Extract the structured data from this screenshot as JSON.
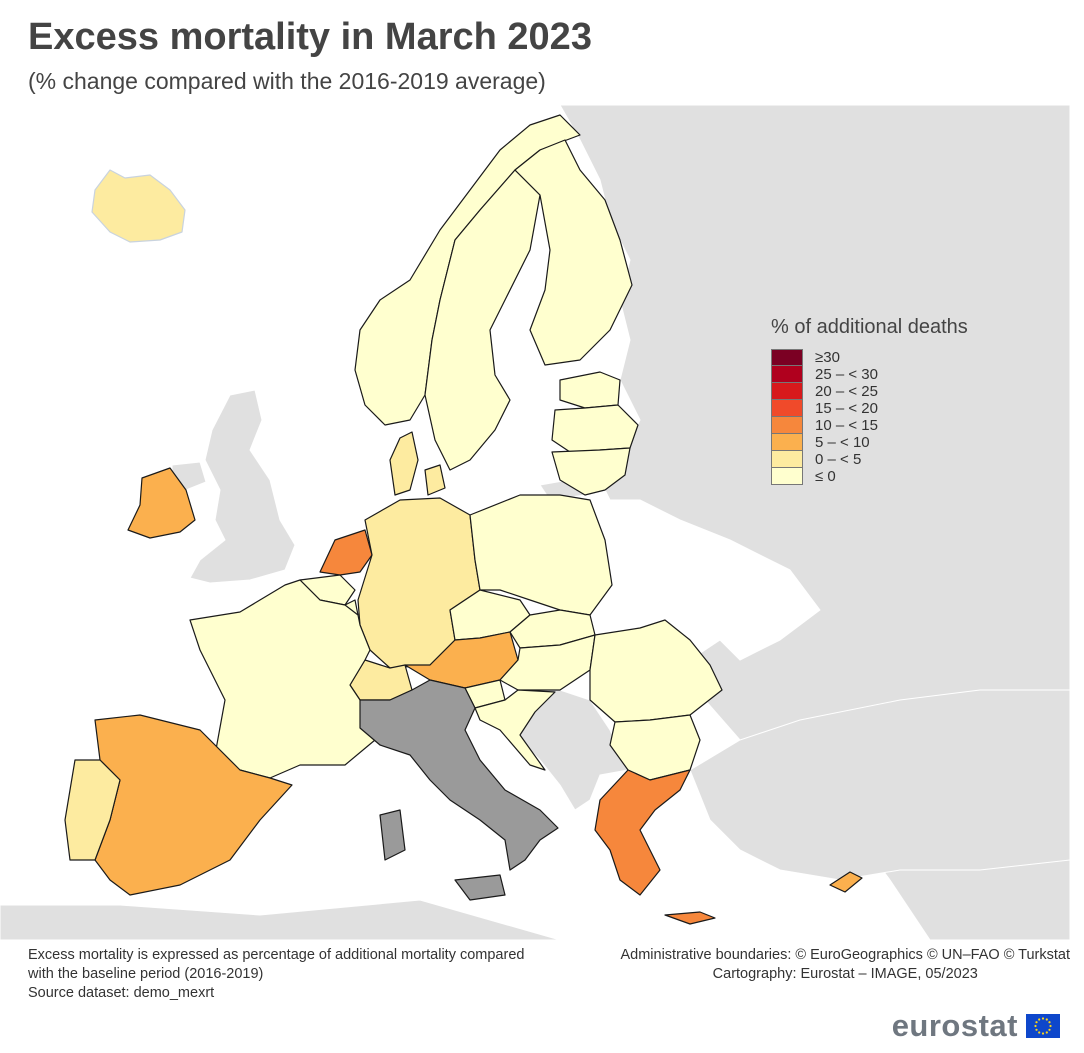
{
  "header": {
    "title": "Excess mortality in March 2023",
    "subtitle": "(% change compared with the 2016-2019 average)"
  },
  "legend": {
    "title": "% of additional deaths",
    "items": [
      {
        "label": "≥30",
        "color": "#7b0023"
      },
      {
        "label": "25 – < 30",
        "color": "#b0001e"
      },
      {
        "label": "20 – < 25",
        "color": "#d7191c"
      },
      {
        "label": "15 – < 20",
        "color": "#f04a2a"
      },
      {
        "label": "10 – < 15",
        "color": "#f6873c"
      },
      {
        "label": "5 – < 10",
        "color": "#fbb04e"
      },
      {
        "label": "0 – < 5",
        "color": "#fdeba0"
      },
      {
        "label": "≤ 0",
        "color": "#ffffcf"
      }
    ]
  },
  "colors": {
    "no_data": "#9a9a9a",
    "non_eu": "#e0e0e0",
    "sea": "#ffffff",
    "border": "#1a1a1a"
  },
  "countries": [
    {
      "name": "Iceland",
      "class": "0 – < 5"
    },
    {
      "name": "Norway",
      "class": "≤ 0"
    },
    {
      "name": "Sweden",
      "class": "≤ 0"
    },
    {
      "name": "Finland",
      "class": "≤ 0"
    },
    {
      "name": "Estonia",
      "class": "≤ 0"
    },
    {
      "name": "Latvia",
      "class": "≤ 0"
    },
    {
      "name": "Lithuania",
      "class": "≤ 0"
    },
    {
      "name": "Denmark",
      "class": "0 – < 5"
    },
    {
      "name": "Ireland",
      "class": "5 – < 10"
    },
    {
      "name": "Netherlands",
      "class": "10 – < 15"
    },
    {
      "name": "Belgium",
      "class": "≤ 0"
    },
    {
      "name": "Luxembourg",
      "class": "≤ 0"
    },
    {
      "name": "Germany",
      "class": "0 – < 5"
    },
    {
      "name": "Poland",
      "class": "≤ 0"
    },
    {
      "name": "Czechia",
      "class": "≤ 0"
    },
    {
      "name": "Slovakia",
      "class": "≤ 0"
    },
    {
      "name": "Austria",
      "class": "5 – < 10"
    },
    {
      "name": "Switzerland",
      "class": "0 – < 5"
    },
    {
      "name": "Liechtenstein",
      "class": "10 – < 15"
    },
    {
      "name": "Hungary",
      "class": "≤ 0"
    },
    {
      "name": "Slovenia",
      "class": "≤ 0"
    },
    {
      "name": "Croatia",
      "class": "≤ 0"
    },
    {
      "name": "Romania",
      "class": "≤ 0"
    },
    {
      "name": "Bulgaria",
      "class": "≤ 0"
    },
    {
      "name": "Greece",
      "class": "10 – < 15"
    },
    {
      "name": "Cyprus",
      "class": "5 – < 10"
    },
    {
      "name": "France",
      "class": "≤ 0"
    },
    {
      "name": "Spain",
      "class": "5 – < 10"
    },
    {
      "name": "Portugal",
      "class": "0 – < 5"
    },
    {
      "name": "Italy",
      "class": "no data"
    },
    {
      "name": "Malta",
      "class": "≤ 0"
    }
  ],
  "footer": {
    "note_line1": "Excess mortality is expressed as percentage of additional mortality compared",
    "note_line2": "with the baseline period (2016-2019)",
    "source": "Source dataset: demo_mexrt",
    "boundaries": "Administrative boundaries: © EuroGeographics © UN–FAO © Turkstat",
    "cartography": "Cartography: Eurostat – IMAGE, 05/2023",
    "brand": "eurostat"
  }
}
